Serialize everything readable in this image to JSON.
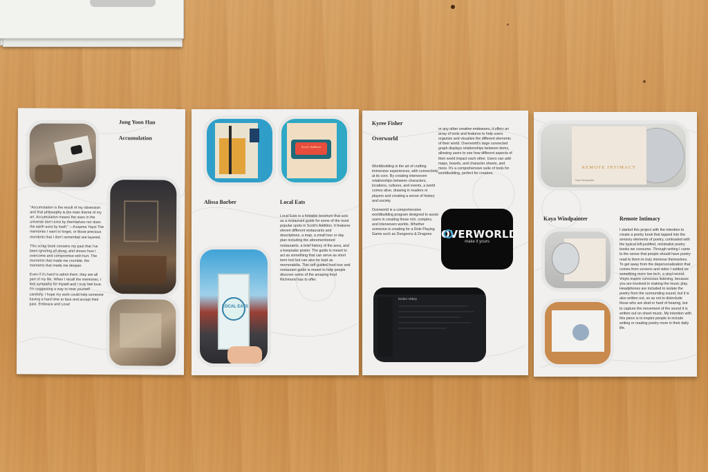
{
  "pages": [
    {
      "author": "Jung Yoon Han",
      "title": "Accumulation",
      "paragraphs": [
        "\"Accumulation is the result of my obsession and that philosophy is the main theme of my art. Accumulation means the stars in the universe don't exist by themselves nor does the earth exist by itself.\" —Kusama Yayoi The memories I want to forget, or those precious moments that I don't remember are layered.",
        "This scrap book contains my past that I've been ignoring all along, and shows how I overcome and compromise with hurt. The moments that made me crumble, the moments that made me despair.",
        "Even if it's hard to admit them, they are all part of my life. When I recall the memories, I feel sympathy for myself and I truly feel love. I'm suggesting a way to treat yourself carefully. I hope my work could help someone having a hard time to face and accept their past. Embrace and Love!"
      ]
    },
    {
      "author": "Alissa Barber",
      "title": "Local Eats",
      "paragraphs": [
        "Local Eats is a foldable brochure that acts as a restaurant guide for some of the most popular spots in Scott's Addition. It features eleven different restaurants and descriptions, a map, a small tour or day plan including the aforementioned restaurants, a brief history of the area, and a keepsake poster. The guide is meant to act as something that can serve as short term tool but can also be kept as memorabilia. This self guided food tour and restaurant guide is meant to help people discover some of the amazing food Richmond has to offer."
      ],
      "brochure_label": "LOCAL EATS",
      "sign_label": "Scott's Addition"
    },
    {
      "author": "Kyree Fisher",
      "title": "Overworld",
      "paragraphs_left": [
        "Worldbuilding is the art of crafting immersive experiences, with connectivity at its core. By creating interwoven relationships between characters, locations, cultures, and events, a world comes alive, drawing in readers or players and creating a sense of history and society.",
        "Overworld is a comprehensive worldbuilding program designed to assist users in creating these rich, complex, and interwoven worlds. Whether someone is creating for a Role Playing Game such as Dungeons & Dragons"
      ],
      "paragraphs_right": [
        "or any other creative endeavors, it offers an array of tools and features to help users organize and visualize the different elements of their world. Overworld's large connected graph displays relationships between items, allowing users to see how different aspects of their world impact each other. Users can add maps, boards, and character sheets, and more. It's a comprehensive suite of tools for worldbuilding, perfect for creators."
      ],
      "logo_word": "OVERWORLD",
      "logo_tagline": "make it yours",
      "screen_title": "Ember Abbey"
    },
    {
      "author": "Kaya Windpainter",
      "title": "Remote Intimacy",
      "paragraphs": [
        "I started this project with the intention to create a poetry book that tapped into the sensory elements of poetry, contrasted with the typical left-justified, minimalist poetry books we consume. Through writing I came to the sense that people should have poetry read to them to truly immerse themselves. To get away from the depersonalization that comes from screens and video I settled on something more low tech, a vinyl record. Vinyls inspire conscious listening, because you are involved in making the music play. Headphones are included to isolate the poetry from the surrounding sound, but it is also written out, so as not to disinclude those who are deaf or hard of hearing, but to capture the movement of the sound it is written out on sheet music. My intention with this piece is to inspire people to include writing or reading poetry more in their daily life."
      ],
      "album_title": "REMOTE INTIMACY",
      "album_artist": "Kaya Windpainter"
    }
  ],
  "colors": {
    "wood": "#cf9554",
    "paper": "#f1f0ee",
    "logo_bg": "#0b0b0c",
    "overworld_accent": "#3ea6d8"
  }
}
